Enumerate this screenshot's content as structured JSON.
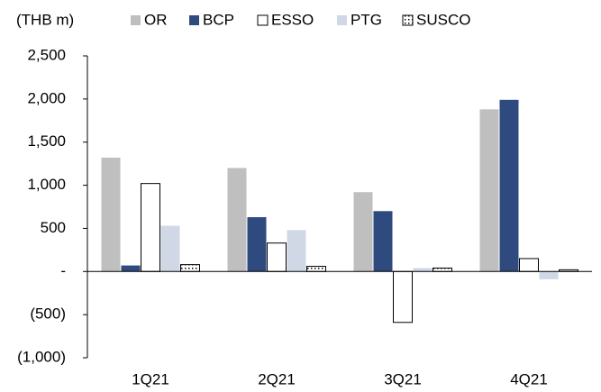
{
  "chart_data": {
    "type": "bar",
    "ylabel": "(THB m)",
    "categories": [
      "1Q21",
      "2Q21",
      "3Q21",
      "4Q21"
    ],
    "series": [
      {
        "name": "OR",
        "color": "#bfbfbf",
        "values": [
          1320,
          1200,
          920,
          1880
        ]
      },
      {
        "name": "BCP",
        "color": "#2e4a7e",
        "values": [
          70,
          630,
          700,
          1990
        ]
      },
      {
        "name": "ESSO",
        "color": "#ffffff",
        "values": [
          1020,
          330,
          -590,
          150
        ]
      },
      {
        "name": "PTG",
        "color": "#d0d8e6",
        "values": [
          530,
          480,
          40,
          -90
        ]
      },
      {
        "name": "SUSCO",
        "color": "#ffffff",
        "pattern": "dots",
        "values": [
          80,
          60,
          40,
          20
        ]
      }
    ],
    "ylim": [
      -1000,
      2500
    ],
    "yticks": [
      {
        "value": -1000,
        "label": "(1,000)"
      },
      {
        "value": -500,
        "label": "(500)"
      },
      {
        "value": 0,
        "label": "-"
      },
      500,
      {
        "value": 1000,
        "label": "1,000"
      },
      {
        "value": 1500,
        "label": "1,500"
      },
      {
        "value": 2000,
        "label": "2,000"
      },
      {
        "value": 2500,
        "label": "2,500"
      }
    ],
    "grid": false
  }
}
